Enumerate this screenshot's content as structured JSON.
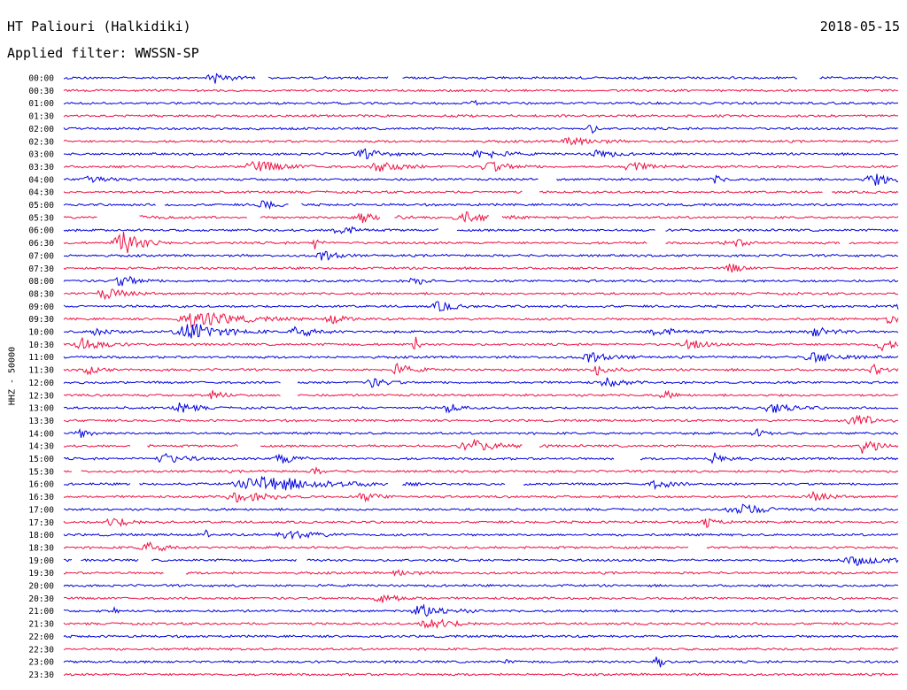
{
  "header": {
    "station": "HT Paliouri (Halkidiki)",
    "date": "2018-05-15",
    "filter": "Applied filter: WWSSN-SP"
  },
  "chart_data": {
    "type": "line",
    "title": "HT Paliouri (Halkidiki)",
    "subtitle": "Applied filter: WWSSN-SP",
    "ylabel": "HHZ - 50000",
    "xlabel": "",
    "grid": false,
    "row_labels": [
      "00:00",
      "00:30",
      "01:00",
      "01:30",
      "02:00",
      "02:30",
      "03:00",
      "03:30",
      "04:00",
      "04:30",
      "05:00",
      "05:30",
      "06:00",
      "06:30",
      "07:00",
      "07:30",
      "08:00",
      "08:30",
      "09:00",
      "09:30",
      "10:00",
      "10:30",
      "11:00",
      "11:30",
      "12:00",
      "12:30",
      "13:00",
      "13:30",
      "14:00",
      "14:30",
      "15:00",
      "15:30",
      "16:00",
      "16:30",
      "17:00",
      "17:30",
      "18:00",
      "18:30",
      "19:00",
      "19:30",
      "20:00",
      "20:30",
      "21:00",
      "21:30",
      "22:00",
      "22:30",
      "23:00",
      "23:30"
    ],
    "series_colors": [
      "#0000dd",
      "#ee1144"
    ],
    "events": [
      {
        "row": 0,
        "pos": 0.18,
        "amp": 6,
        "dur": 0.03
      },
      {
        "row": 2,
        "pos": 0.49,
        "amp": 10,
        "dur": 0.004
      },
      {
        "row": 4,
        "pos": 0.63,
        "amp": 8,
        "dur": 0.01
      },
      {
        "row": 5,
        "pos": 0.61,
        "amp": 6,
        "dur": 0.04
      },
      {
        "row": 6,
        "pos": 0.36,
        "amp": 5,
        "dur": 0.04
      },
      {
        "row": 6,
        "pos": 0.5,
        "amp": 6,
        "dur": 0.04
      },
      {
        "row": 6,
        "pos": 0.64,
        "amp": 5,
        "dur": 0.03
      },
      {
        "row": 7,
        "pos": 0.23,
        "amp": 6,
        "dur": 0.06
      },
      {
        "row": 7,
        "pos": 0.38,
        "amp": 7,
        "dur": 0.04
      },
      {
        "row": 7,
        "pos": 0.51,
        "amp": 6,
        "dur": 0.04
      },
      {
        "row": 7,
        "pos": 0.68,
        "amp": 5,
        "dur": 0.04
      },
      {
        "row": 8,
        "pos": 0.03,
        "amp": 6,
        "dur": 0.03
      },
      {
        "row": 8,
        "pos": 0.78,
        "amp": 4,
        "dur": 0.02
      },
      {
        "row": 8,
        "pos": 0.97,
        "amp": 7,
        "dur": 0.04
      },
      {
        "row": 10,
        "pos": 0.24,
        "amp": 5,
        "dur": 0.03
      },
      {
        "row": 11,
        "pos": 0.06,
        "amp": 5,
        "dur": 0.05
      },
      {
        "row": 11,
        "pos": 0.36,
        "amp": 6,
        "dur": 0.05
      },
      {
        "row": 11,
        "pos": 0.48,
        "amp": 6,
        "dur": 0.05
      },
      {
        "row": 12,
        "pos": 0.33,
        "amp": 6,
        "dur": 0.03
      },
      {
        "row": 13,
        "pos": 0.07,
        "amp": 14,
        "dur": 0.04
      },
      {
        "row": 13,
        "pos": 0.3,
        "amp": 10,
        "dur": 0.008
      },
      {
        "row": 13,
        "pos": 0.8,
        "amp": 5,
        "dur": 0.03
      },
      {
        "row": 14,
        "pos": 0.31,
        "amp": 6,
        "dur": 0.03
      },
      {
        "row": 15,
        "pos": 0.8,
        "amp": 6,
        "dur": 0.02
      },
      {
        "row": 16,
        "pos": 0.07,
        "amp": 7,
        "dur": 0.03
      },
      {
        "row": 16,
        "pos": 0.42,
        "amp": 5,
        "dur": 0.02
      },
      {
        "row": 17,
        "pos": 0.05,
        "amp": 6,
        "dur": 0.04
      },
      {
        "row": 18,
        "pos": 0.45,
        "amp": 6,
        "dur": 0.03
      },
      {
        "row": 18,
        "pos": 1.0,
        "amp": 8,
        "dur": 0.01
      },
      {
        "row": 19,
        "pos": 0.16,
        "amp": 10,
        "dur": 0.08
      },
      {
        "row": 19,
        "pos": 0.32,
        "amp": 5,
        "dur": 0.03
      },
      {
        "row": 19,
        "pos": 0.99,
        "amp": 6,
        "dur": 0.02
      },
      {
        "row": 20,
        "pos": 0.04,
        "amp": 5,
        "dur": 0.03
      },
      {
        "row": 20,
        "pos": 0.15,
        "amp": 12,
        "dur": 0.06
      },
      {
        "row": 20,
        "pos": 0.28,
        "amp": 6,
        "dur": 0.04
      },
      {
        "row": 20,
        "pos": 0.71,
        "amp": 5,
        "dur": 0.04
      },
      {
        "row": 20,
        "pos": 0.9,
        "amp": 5,
        "dur": 0.04
      },
      {
        "row": 21,
        "pos": 0.02,
        "amp": 8,
        "dur": 0.04
      },
      {
        "row": 21,
        "pos": 0.42,
        "amp": 16,
        "dur": 0.006
      },
      {
        "row": 21,
        "pos": 0.75,
        "amp": 6,
        "dur": 0.03
      },
      {
        "row": 21,
        "pos": 0.98,
        "amp": 6,
        "dur": 0.03
      },
      {
        "row": 22,
        "pos": 0.63,
        "amp": 6,
        "dur": 0.04
      },
      {
        "row": 22,
        "pos": 0.9,
        "amp": 6,
        "dur": 0.05
      },
      {
        "row": 23,
        "pos": 0.03,
        "amp": 6,
        "dur": 0.02
      },
      {
        "row": 23,
        "pos": 0.4,
        "amp": 6,
        "dur": 0.03
      },
      {
        "row": 23,
        "pos": 0.64,
        "amp": 6,
        "dur": 0.03
      },
      {
        "row": 23,
        "pos": 0.97,
        "amp": 6,
        "dur": 0.02
      },
      {
        "row": 24,
        "pos": 0.37,
        "amp": 5,
        "dur": 0.03
      },
      {
        "row": 24,
        "pos": 0.65,
        "amp": 5,
        "dur": 0.03
      },
      {
        "row": 25,
        "pos": 0.18,
        "amp": 6,
        "dur": 0.02
      },
      {
        "row": 25,
        "pos": 0.72,
        "amp": 5,
        "dur": 0.02
      },
      {
        "row": 26,
        "pos": 0.14,
        "amp": 6,
        "dur": 0.03
      },
      {
        "row": 26,
        "pos": 0.46,
        "amp": 6,
        "dur": 0.02
      },
      {
        "row": 26,
        "pos": 0.85,
        "amp": 6,
        "dur": 0.04
      },
      {
        "row": 27,
        "pos": 0.95,
        "amp": 7,
        "dur": 0.04
      },
      {
        "row": 28,
        "pos": 0.02,
        "amp": 5,
        "dur": 0.02
      },
      {
        "row": 28,
        "pos": 0.83,
        "amp": 4,
        "dur": 0.02
      },
      {
        "row": 29,
        "pos": 0.49,
        "amp": 6,
        "dur": 0.06
      },
      {
        "row": 29,
        "pos": 0.96,
        "amp": 16,
        "dur": 0.02
      },
      {
        "row": 30,
        "pos": 0.12,
        "amp": 6,
        "dur": 0.04
      },
      {
        "row": 30,
        "pos": 0.26,
        "amp": 6,
        "dur": 0.03
      },
      {
        "row": 30,
        "pos": 0.78,
        "amp": 6,
        "dur": 0.03
      },
      {
        "row": 31,
        "pos": 0.3,
        "amp": 6,
        "dur": 0.01
      },
      {
        "row": 32,
        "pos": 0.24,
        "amp": 9,
        "dur": 0.12
      },
      {
        "row": 32,
        "pos": 0.71,
        "amp": 5,
        "dur": 0.03
      },
      {
        "row": 33,
        "pos": 0.21,
        "amp": 6,
        "dur": 0.06
      },
      {
        "row": 33,
        "pos": 0.36,
        "amp": 5,
        "dur": 0.03
      },
      {
        "row": 33,
        "pos": 0.9,
        "amp": 5,
        "dur": 0.03
      },
      {
        "row": 34,
        "pos": 0.81,
        "amp": 6,
        "dur": 0.06
      },
      {
        "row": 35,
        "pos": 0.06,
        "amp": 5,
        "dur": 0.04
      },
      {
        "row": 35,
        "pos": 0.77,
        "amp": 6,
        "dur": 0.02
      },
      {
        "row": 36,
        "pos": 0.27,
        "amp": 5,
        "dur": 0.05
      },
      {
        "row": 36,
        "pos": 0.17,
        "amp": 8,
        "dur": 0.004
      },
      {
        "row": 37,
        "pos": 0.1,
        "amp": 6,
        "dur": 0.04
      },
      {
        "row": 38,
        "pos": 0.95,
        "amp": 5,
        "dur": 0.06
      },
      {
        "row": 39,
        "pos": 0.4,
        "amp": 4,
        "dur": 0.03
      },
      {
        "row": 41,
        "pos": 0.38,
        "amp": 5,
        "dur": 0.04
      },
      {
        "row": 42,
        "pos": 0.43,
        "amp": 7,
        "dur": 0.05
      },
      {
        "row": 42,
        "pos": 0.06,
        "amp": 7,
        "dur": 0.004
      },
      {
        "row": 43,
        "pos": 0.44,
        "amp": 6,
        "dur": 0.05
      },
      {
        "row": 46,
        "pos": 0.71,
        "amp": 18,
        "dur": 0.01
      },
      {
        "row": 46,
        "pos": 0.53,
        "amp": 4,
        "dur": 0.005
      }
    ],
    "gaps": [
      {
        "row": 0,
        "pos": 0.23,
        "len": 0.015
      },
      {
        "row": 0,
        "pos": 0.39,
        "len": 0.015
      },
      {
        "row": 0,
        "pos": 0.88,
        "len": 0.025
      },
      {
        "row": 8,
        "pos": 0.57,
        "len": 0.02
      },
      {
        "row": 9,
        "pos": 0.55,
        "len": 0.02
      },
      {
        "row": 9,
        "pos": 0.91,
        "len": 0.01
      },
      {
        "row": 10,
        "pos": 0.11,
        "len": 0.01
      },
      {
        "row": 10,
        "pos": 0.27,
        "len": 0.015
      },
      {
        "row": 11,
        "pos": 0.04,
        "len": 0.05
      },
      {
        "row": 11,
        "pos": 0.22,
        "len": 0.015
      },
      {
        "row": 11,
        "pos": 0.38,
        "len": 0.015
      },
      {
        "row": 11,
        "pos": 0.51,
        "len": 0.015
      },
      {
        "row": 12,
        "pos": 0.45,
        "len": 0.02
      },
      {
        "row": 12,
        "pos": 0.71,
        "len": 0.01
      },
      {
        "row": 13,
        "pos": 0.7,
        "len": 0.02
      },
      {
        "row": 13,
        "pos": 0.93,
        "len": 0.01
      },
      {
        "row": 24,
        "pos": 0.26,
        "len": 0.02
      },
      {
        "row": 25,
        "pos": 0.26,
        "len": 0.02
      },
      {
        "row": 29,
        "pos": 0.08,
        "len": 0.02
      },
      {
        "row": 29,
        "pos": 0.21,
        "len": 0.025
      },
      {
        "row": 29,
        "pos": 0.55,
        "len": 0.02
      },
      {
        "row": 30,
        "pos": 0.66,
        "len": 0.03
      },
      {
        "row": 31,
        "pos": 0.01,
        "len": 0.01
      },
      {
        "row": 32,
        "pos": 0.08,
        "len": 0.01
      },
      {
        "row": 32,
        "pos": 0.39,
        "len": 0.015
      },
      {
        "row": 32,
        "pos": 0.53,
        "len": 0.02
      },
      {
        "row": 37,
        "pos": 0.75,
        "len": 0.02
      },
      {
        "row": 38,
        "pos": 0.01,
        "len": 0.01
      },
      {
        "row": 38,
        "pos": 0.09,
        "len": 0.015
      },
      {
        "row": 38,
        "pos": 0.28,
        "len": 0.01
      },
      {
        "row": 39,
        "pos": 0.12,
        "len": 0.025
      }
    ]
  }
}
